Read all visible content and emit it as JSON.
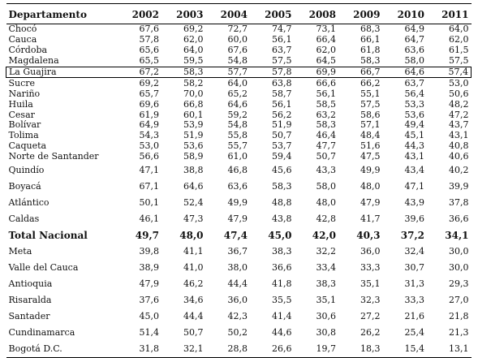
{
  "table": {
    "header": {
      "name_label": "Departamento",
      "years": [
        "2002",
        "2003",
        "2004",
        "2005",
        "2008",
        "2009",
        "2010",
        "2011"
      ]
    },
    "highlighted_row": "La Guajira",
    "rows": [
      {
        "name": "Chocó",
        "values": [
          "67,6",
          "69,2",
          "72,7",
          "74,7",
          "73,1",
          "68,3",
          "64,9",
          "64,0"
        ]
      },
      {
        "name": "Cauca",
        "values": [
          "57,8",
          "62,0",
          "60,0",
          "56,1",
          "66,4",
          "66,1",
          "64,7",
          "62,0"
        ]
      },
      {
        "name": "Córdoba",
        "values": [
          "65,6",
          "64,0",
          "67,6",
          "63,7",
          "62,0",
          "61,8",
          "63,6",
          "61,5"
        ]
      },
      {
        "name": "Magdalena",
        "values": [
          "65,5",
          "59,5",
          "54,8",
          "57,5",
          "64,5",
          "58,3",
          "58,0",
          "57,5"
        ]
      },
      {
        "name": "La Guajira",
        "values": [
          "67,2",
          "58,3",
          "57,7",
          "57,8",
          "69,9",
          "66,7",
          "64,6",
          "57,4"
        ]
      },
      {
        "name": "Sucre",
        "values": [
          "69,2",
          "58,2",
          "64,0",
          "63,8",
          "66,6",
          "66,2",
          "63,7",
          "53,0"
        ]
      },
      {
        "name": "Nariño",
        "values": [
          "65,7",
          "70,0",
          "65,2",
          "58,7",
          "56,1",
          "55,1",
          "56,4",
          "50,6"
        ]
      },
      {
        "name": "Huila",
        "values": [
          "69,6",
          "66,8",
          "64,6",
          "56,1",
          "58,5",
          "57,5",
          "53,3",
          "48,2"
        ]
      },
      {
        "name": "Cesar",
        "values": [
          "61,9",
          "60,1",
          "59,2",
          "56,2",
          "63,2",
          "58,6",
          "53,6",
          "47,2"
        ]
      },
      {
        "name": "Bolívar",
        "values": [
          "64,9",
          "53,9",
          "54,8",
          "51,9",
          "58,3",
          "57,1",
          "49,4",
          "43,7"
        ]
      },
      {
        "name": "Tolima",
        "values": [
          "54,3",
          "51,9",
          "55,8",
          "50,7",
          "46,4",
          "48,4",
          "45,1",
          "43,1"
        ]
      },
      {
        "name": "Caqueta",
        "values": [
          "53,0",
          "53,6",
          "55,7",
          "53,7",
          "47,7",
          "51,6",
          "44,3",
          "40,8"
        ]
      },
      {
        "name": "Norte de Santander",
        "values": [
          "56,6",
          "58,9",
          "61,0",
          "59,4",
          "50,7",
          "47,5",
          "43,1",
          "40,6"
        ]
      },
      {
        "name": "Quindío",
        "values": [
          "47,1",
          "38,8",
          "46,8",
          "45,6",
          "43,3",
          "49,9",
          "43,4",
          "40,2"
        ]
      },
      {
        "name": "Boyacá",
        "values": [
          "67,1",
          "64,6",
          "63,6",
          "58,3",
          "58,0",
          "48,0",
          "47,1",
          "39,9"
        ]
      },
      {
        "name": "Atlántico",
        "values": [
          "50,1",
          "52,4",
          "49,9",
          "48,8",
          "48,0",
          "47,9",
          "43,9",
          "37,8"
        ]
      },
      {
        "name": "Caldas",
        "values": [
          "46,1",
          "47,3",
          "47,9",
          "43,8",
          "42,8",
          "41,7",
          "39,6",
          "36,6"
        ]
      },
      {
        "name": "Total Nacional",
        "values": [
          "49,7",
          "48,0",
          "47,4",
          "45,0",
          "42,0",
          "40,3",
          "37,2",
          "34,1"
        ]
      },
      {
        "name": "Meta",
        "values": [
          "39,8",
          "41,1",
          "36,7",
          "38,3",
          "32,2",
          "36,0",
          "32,4",
          "30,0"
        ]
      },
      {
        "name": "Valle del Cauca",
        "values": [
          "38,9",
          "41,0",
          "38,0",
          "36,6",
          "33,4",
          "33,3",
          "30,7",
          "30,0"
        ]
      },
      {
        "name": "Antioquia",
        "values": [
          "47,9",
          "46,2",
          "44,4",
          "41,8",
          "38,3",
          "35,1",
          "31,3",
          "29,3"
        ]
      },
      {
        "name": "Risaralda",
        "values": [
          "37,6",
          "34,6",
          "36,0",
          "35,5",
          "35,1",
          "32,3",
          "33,3",
          "27,0"
        ]
      },
      {
        "name": "Santader",
        "values": [
          "45,0",
          "44,4",
          "42,3",
          "41,4",
          "30,6",
          "27,2",
          "21,6",
          "21,8"
        ]
      },
      {
        "name": "Cundinamarca",
        "values": [
          "51,4",
          "50,7",
          "50,2",
          "44,6",
          "30,8",
          "26,2",
          "25,4",
          "21,3"
        ]
      },
      {
        "name": "Bogotá D.C.",
        "values": [
          "31,8",
          "32,1",
          "28,8",
          "26,6",
          "19,7",
          "18,3",
          "15,4",
          "13,1"
        ]
      }
    ]
  }
}
